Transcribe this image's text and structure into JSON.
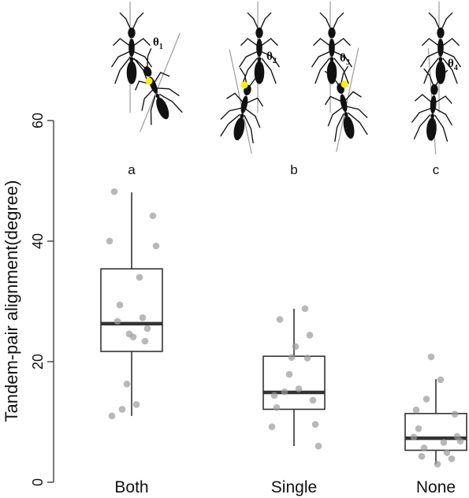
{
  "chart_data": {
    "type": "box",
    "categories": [
      "Both",
      "Single",
      "None"
    ],
    "ylabel": "Tandem-pair alignment(degree)",
    "xlabel": "",
    "ylim": [
      0,
      60
    ],
    "yticks": [
      "0",
      "20",
      "40",
      "60"
    ],
    "grid": false,
    "letters": [
      "a",
      "b",
      "c"
    ],
    "angle_labels": [
      "θ1",
      "θ2",
      "θ3",
      "θ4"
    ],
    "boxes": [
      {
        "category": "Both",
        "whisker_low": 11,
        "q1": 21.7,
        "median": 26.3,
        "q3": 35.4,
        "whisker_high": 48.1
      },
      {
        "category": "Single",
        "whisker_low": 6,
        "q1": 12.1,
        "median": 14.9,
        "q3": 20.9,
        "whisker_high": 28.8
      },
      {
        "category": "None",
        "whisker_low": 3,
        "q1": 5.3,
        "median": 7.3,
        "q3": 11.4,
        "whisker_high": 17.1
      }
    ],
    "points": [
      {
        "category": "Both",
        "values": [
          48.2,
          44.2,
          40.0,
          39.2,
          34.0,
          29.4,
          27.3,
          26.7,
          25.5,
          24.1,
          24.6,
          23.4,
          16.3,
          12.9,
          12.1,
          11.0
        ]
      },
      {
        "category": "Single",
        "values": [
          28.8,
          27.0,
          24.4,
          22.5,
          20.7,
          20.6,
          17.9,
          15.5,
          15.0,
          14.4,
          13.6,
          12.4,
          9.6,
          9.2,
          6.0
        ]
      },
      {
        "category": "None",
        "values": [
          20.8,
          17.0,
          13.8,
          12.0,
          11.3,
          8.9,
          7.6,
          7.5,
          6.8,
          6.6,
          5.7,
          4.9,
          4.3,
          3.9,
          3.0
        ]
      }
    ],
    "colors": {
      "box": "#333333",
      "median": "#333333",
      "point": "#9a9a9a",
      "ant": "#111111",
      "contact": "#ffee00",
      "axisline": "#9c9c9c"
    }
  }
}
